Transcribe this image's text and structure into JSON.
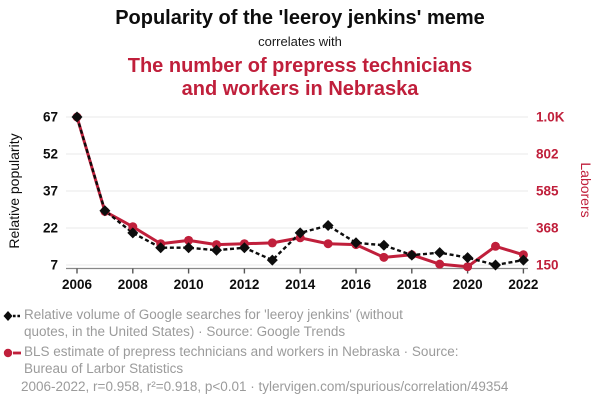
{
  "header": {
    "title": "Popularity of the 'leeroy jenkins' meme",
    "connector": "correlates with",
    "subtitle_lines": [
      "The number of prepress technicians",
      "and workers in Nebraska"
    ]
  },
  "colors": {
    "accent_red": "#c01f3b",
    "series_black": "#0d0d0d",
    "legend_gray": "#9b9b9b",
    "gridline": "#e8e8e8",
    "axis": "#888888"
  },
  "chart_data": {
    "type": "line",
    "x": [
      2006,
      2007,
      2008,
      2009,
      2010,
      2011,
      2012,
      2013,
      2014,
      2015,
      2016,
      2017,
      2018,
      2019,
      2020,
      2021,
      2022
    ],
    "x_label_ticks": [
      2006,
      2008,
      2010,
      2012,
      2014,
      2016,
      2018,
      2020,
      2022
    ],
    "left_axis": {
      "label": "Relative popularity",
      "min": 7,
      "max": 67,
      "ticks": [
        {
          "value": 67,
          "label": "67"
        },
        {
          "value": 52,
          "label": "52"
        },
        {
          "value": 37,
          "label": "37"
        },
        {
          "value": 22,
          "label": "22"
        },
        {
          "value": 7,
          "label": "7"
        }
      ]
    },
    "right_axis": {
      "label": "Laborers",
      "min": 150,
      "max": 1020,
      "ticks": [
        {
          "value": 1020,
          "label": "1.0K"
        },
        {
          "value": 802.5,
          "label": "802"
        },
        {
          "value": 585,
          "label": "585"
        },
        {
          "value": 367.5,
          "label": "368"
        },
        {
          "value": 150,
          "label": "150"
        }
      ]
    },
    "series": [
      {
        "id": "leeroy-searches",
        "name": "Relative volume of Google searches for 'leeroy jenkins'",
        "axis": "left",
        "color": "#0d0d0d",
        "line_style": "dashed",
        "marker": "diamond",
        "values": [
          67,
          29,
          20,
          14,
          14,
          13,
          14,
          9,
          20,
          23,
          16,
          15,
          11,
          12,
          10,
          7,
          9
        ]
      },
      {
        "id": "prepress-nebraska",
        "name": "BLS estimate of prepress technicians and workers in Nebraska",
        "axis": "right",
        "color": "#c01f3b",
        "line_style": "solid",
        "marker": "circle",
        "values": [
          1020,
          465,
          375,
          275,
          295,
          270,
          275,
          280,
          310,
          275,
          270,
          195,
          210,
          155,
          140,
          260,
          210
        ]
      }
    ],
    "grid": "horizontal"
  },
  "legend": {
    "items": [
      {
        "lines": [
          "Relative volume of Google searches for 'leeroy jenkins' (without",
          "quotes, in the United States) · Source: Google Trends"
        ]
      },
      {
        "lines": [
          "BLS estimate of prepress technicians and workers in Nebraska · Source:",
          "Bureau of Larbor Statistics"
        ]
      }
    ],
    "footer": "2006-2022, r=0.958, r²=0.918, p<0.01 · tylervigen.com/spurious/correlation/49354"
  }
}
